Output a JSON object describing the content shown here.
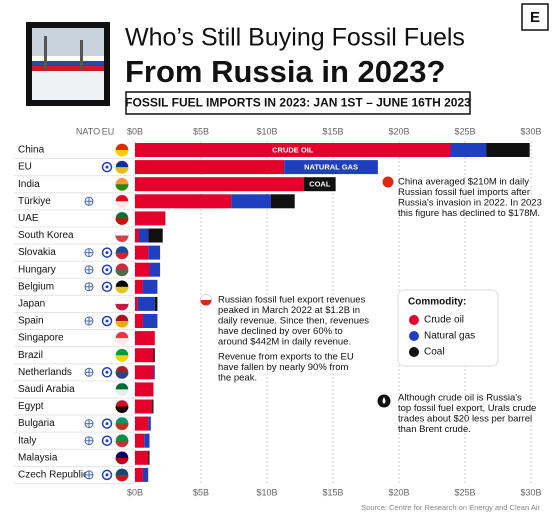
{
  "chart_data": {
    "type": "stacked-bar",
    "orientation": "horizontal",
    "title": "Who’s Still Buying Fossil Fuels",
    "title_line2": "From Russia in 2023?",
    "subtitle": "FOSSIL FUEL IMPORTS IN 2023: JAN 1ST – JUNE 16TH 2023",
    "logo": "E",
    "nato_header": "NATO",
    "eu_header": "EU",
    "categories": [
      "China",
      "EU",
      "India",
      "Türkiye",
      "UAE",
      "South Korea",
      "Slovakia",
      "Hungary",
      "Belgium",
      "Japan",
      "Spain",
      "Singapore",
      "Brazil",
      "Netherlands",
      "Saudi Arabia",
      "Egypt",
      "Bulgaria",
      "Italy",
      "Malaysia",
      "Czech Republic"
    ],
    "nato": [
      false,
      false,
      false,
      true,
      false,
      false,
      true,
      true,
      true,
      false,
      true,
      false,
      false,
      true,
      false,
      false,
      true,
      true,
      false,
      true
    ],
    "eu": [
      false,
      true,
      false,
      false,
      false,
      false,
      true,
      true,
      true,
      false,
      true,
      false,
      false,
      true,
      false,
      false,
      true,
      true,
      false,
      true
    ],
    "series": [
      {
        "name": "Crude oil",
        "color": "#e4002b",
        "bar_label": {
          "text": "CRUDE OIL",
          "category": "China"
        },
        "values": [
          23.9,
          11.3,
          12.8,
          7.3,
          2.3,
          0.3,
          1.0,
          1.1,
          0.6,
          0.2,
          0.6,
          1.5,
          1.4,
          1.4,
          1.4,
          1.3,
          1.0,
          0.7,
          1.0,
          0.6
        ]
      },
      {
        "name": "Natural gas",
        "color": "#1f3fbf",
        "bar_label": {
          "text": "NATURAL GAS",
          "category": "EU"
        },
        "values": [
          2.7,
          7.1,
          0,
          3.0,
          0,
          0.7,
          0.9,
          0.8,
          1.1,
          1.3,
          1.1,
          0,
          0,
          0.1,
          0,
          0,
          0.2,
          0.4,
          0,
          0.4
        ]
      },
      {
        "name": "Coal",
        "color": "#111111",
        "bar_label": {
          "text": "COAL",
          "category": "India"
        },
        "values": [
          3.3,
          0,
          2.4,
          1.8,
          0,
          1.1,
          0,
          0,
          0,
          0.2,
          0,
          0,
          0.1,
          0,
          0,
          0.1,
          0,
          0,
          0.1,
          0
        ]
      }
    ],
    "xlim": [
      0,
      30
    ],
    "xticks": [
      {
        "value": 0,
        "label": "$0B"
      },
      {
        "value": 5,
        "label": "$5B"
      },
      {
        "value": 10,
        "label": "$10B"
      },
      {
        "value": 15,
        "label": "$15B"
      },
      {
        "value": 20,
        "label": "$20B"
      },
      {
        "value": 25,
        "label": "$25B"
      },
      {
        "value": 30,
        "label": "$30B"
      }
    ],
    "grid": true,
    "legend_title": "Commodity:",
    "annotations": {
      "china": [
        "China averaged $210M in daily",
        "Russian fossil fuel imports after",
        "Russia's invasion in 2022. In 2023",
        "this figure has declined to $178M."
      ],
      "russia": [
        "Russian fossil fuel export revenues",
        "peaked in March 2022 at $1.2B in",
        "daily revenue. Since then, revenues",
        "have declined by over 60% to",
        "around $442M in daily revenue."
      ],
      "eu_revenue": [
        "Revenue from exports to the EU",
        "have fallen by nearly 90% from",
        "the peak."
      ],
      "urals": [
        "Although crude oil is Russia's",
        "top fossil fuel export, Urals crude",
        "trades about $20 less per barrel",
        "than Brent crude."
      ]
    },
    "source": "Source: Centre for Research on Energy and Clean Air"
  }
}
